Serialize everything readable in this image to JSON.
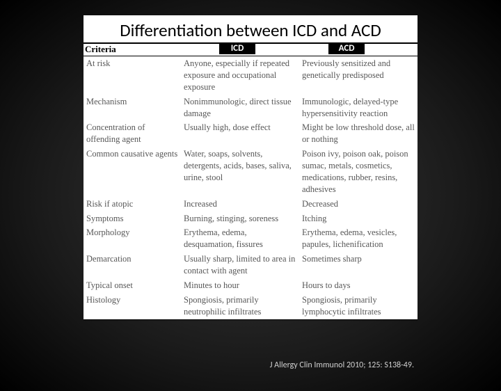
{
  "title": "Differentiation between ICD and ACD",
  "headers": {
    "criteria": "Criteria",
    "icd": "ICD",
    "acd": "ACD"
  },
  "rows": [
    {
      "criteria": "At risk",
      "icd": "Anyone, especially if repeated exposure and occupational exposure",
      "acd": "Previously sensitized and genetically predisposed"
    },
    {
      "criteria": "Mechanism",
      "icd": "Nonimmunologic, direct tissue damage",
      "acd": "Immunologic, delayed-type hypersensitivity reaction"
    },
    {
      "criteria": "Concentration of offending agent",
      "icd": "Usually high, dose effect",
      "acd": "Might be low threshold dose, all or nothing"
    },
    {
      "criteria": "Common causative agents",
      "icd": "Water, soaps, solvents, detergents, acids, bases, saliva, urine, stool",
      "acd": "Poison ivy, poison oak, poison sumac, metals, cosmetics, medications, rubber, resins, adhesives"
    },
    {
      "criteria": "Risk if atopic",
      "icd": "Increased",
      "acd": "Decreased"
    },
    {
      "criteria": "Symptoms",
      "icd": "Burning, stinging, soreness",
      "acd": "Itching"
    },
    {
      "criteria": "Morphology",
      "icd": "Erythema, edema, desquamation, fissures",
      "acd": "Erythema, edema, vesicles, papules, lichenification"
    },
    {
      "criteria": "Demarcation",
      "icd": "Usually sharp, limited to area in contact with agent",
      "acd": "Sometimes sharp"
    },
    {
      "criteria": "Typical onset",
      "icd": "Minutes to hour",
      "acd": "Hours to days"
    },
    {
      "criteria": "Histology",
      "icd": "Spongiosis, primarily neutrophilic infiltrates",
      "acd": "Spongiosis, primarily lymphocytic infiltrates"
    }
  ],
  "citation": "J Allergy Clin Immunol 2010; 125: S138-49."
}
